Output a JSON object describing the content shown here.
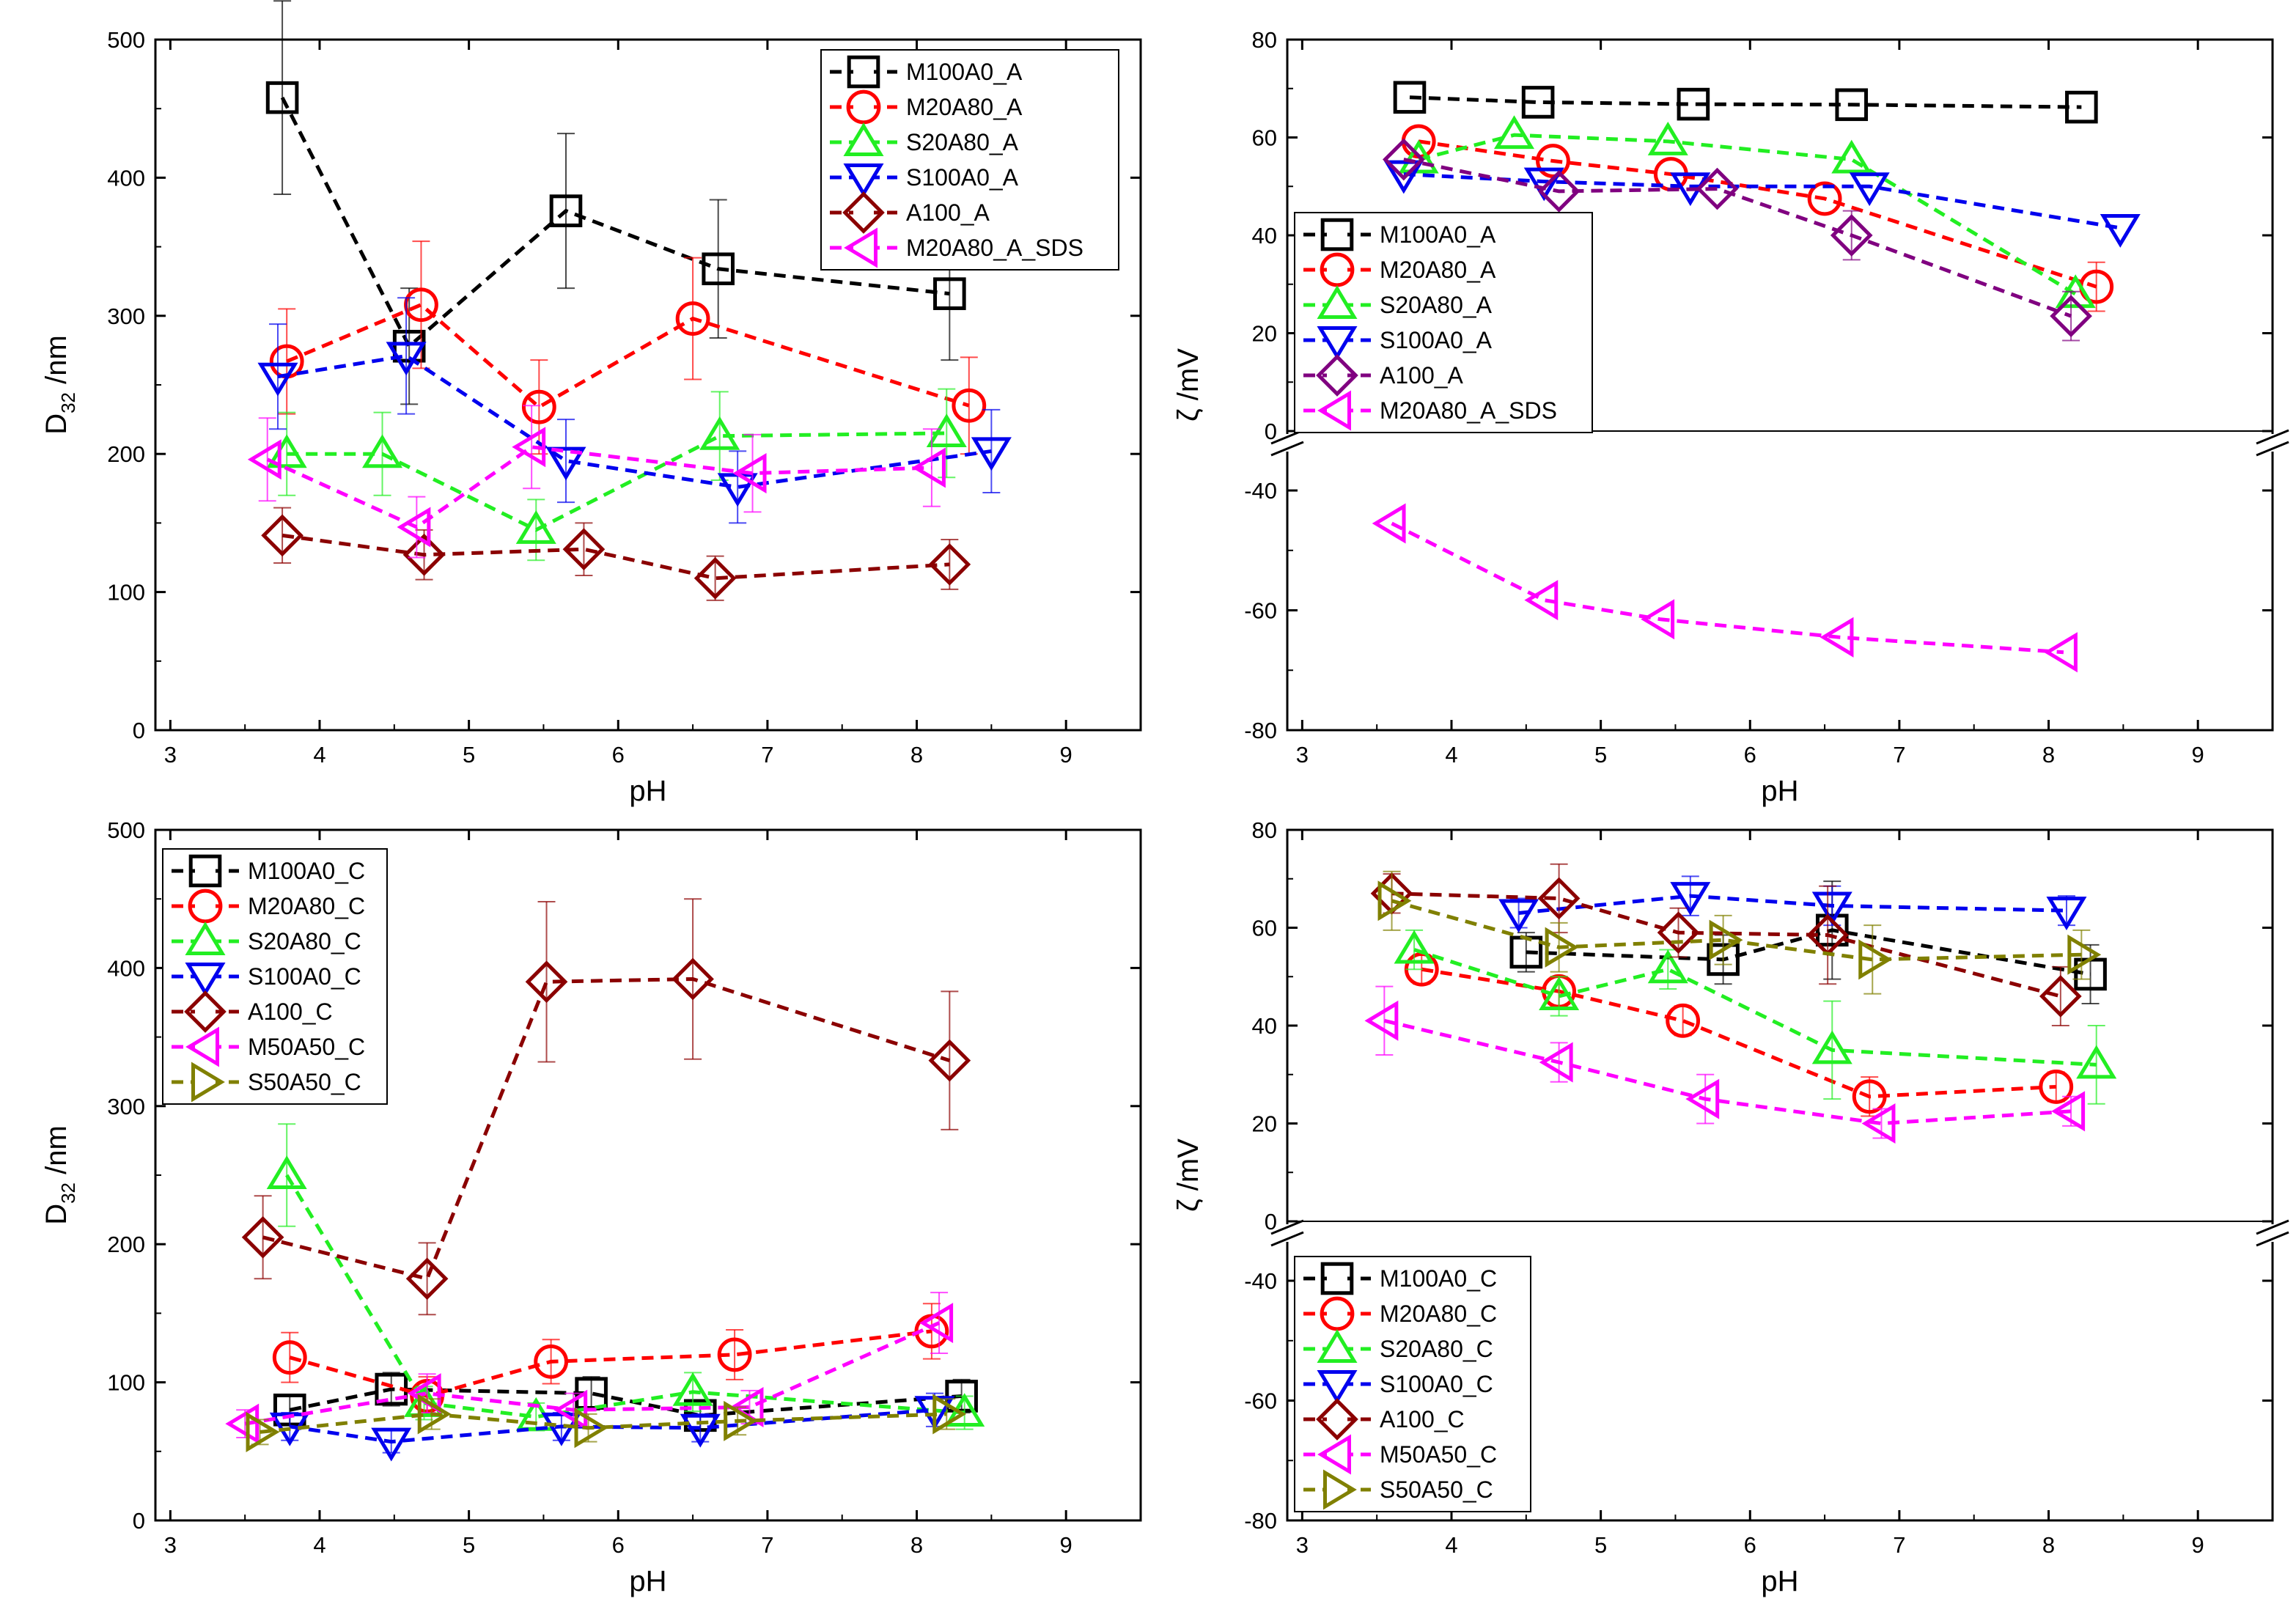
{
  "colors": {
    "black": "#000000",
    "red": "#ff0000",
    "green": "#22ee22",
    "blue": "#0000ee",
    "darkred": "#8b0000",
    "magenta": "#ff00ff",
    "purple": "#800080",
    "olive": "#808000"
  },
  "chart_data": [
    {
      "type": "line",
      "title": "",
      "xlabel": "pH",
      "ylabel": "D32 /nm",
      "ylabel_main": "D",
      "ylabel_sub": "32",
      "ylabel_unit": " /nm",
      "xlim": [
        2.9,
        9.5
      ],
      "ylim": [
        0,
        500
      ],
      "xticks": [
        3,
        4,
        5,
        6,
        7,
        8,
        9
      ],
      "yticks": [
        0,
        100,
        200,
        300,
        400,
        500
      ],
      "xtick_labels": [
        "3",
        "4",
        "5",
        "6",
        "7",
        "8",
        "9"
      ],
      "ytick_labels": [
        "0",
        "100",
        "200",
        "300",
        "400",
        "500"
      ],
      "legend_position": "top-right",
      "series": [
        {
          "name": "M100A0_A",
          "marker": "square",
          "color": "#000000",
          "x": [
            3.75,
            4.6,
            5.65,
            6.67,
            8.22
          ],
          "y": [
            458,
            278,
            376,
            334,
            316
          ],
          "err": [
            70,
            42,
            56,
            50,
            48
          ]
        },
        {
          "name": "M20A80_A",
          "marker": "circle",
          "color": "#ff0000",
          "x": [
            3.78,
            4.68,
            5.47,
            6.5,
            8.35
          ],
          "y": [
            267,
            308,
            234,
            298,
            235
          ],
          "err": [
            38,
            46,
            34,
            44,
            35
          ]
        },
        {
          "name": "S20A80_A",
          "marker": "triangle-up",
          "color": "#22ee22",
          "x": [
            3.78,
            4.42,
            5.45,
            6.68,
            8.2
          ],
          "y": [
            200,
            200,
            145,
            213,
            215
          ],
          "err": [
            30,
            30,
            22,
            32,
            32
          ]
        },
        {
          "name": "S100A0_A",
          "marker": "triangle-down",
          "color": "#0000ee",
          "x": [
            3.72,
            4.58,
            5.65,
            6.8,
            8.5
          ],
          "y": [
            256,
            271,
            195,
            176,
            202
          ],
          "err": [
            38,
            42,
            30,
            26,
            30
          ]
        },
        {
          "name": "A100_A",
          "marker": "diamond",
          "color": "#8b0000",
          "x": [
            3.75,
            4.7,
            5.77,
            6.65,
            8.22
          ],
          "y": [
            141,
            127,
            131,
            110,
            120
          ],
          "err": [
            20,
            18,
            19,
            16,
            18
          ]
        },
        {
          "name": "M20A80_A_SDS",
          "marker": "triangle-left",
          "color": "#ff00ff",
          "x": [
            3.65,
            4.65,
            5.42,
            6.9,
            8.1
          ],
          "y": [
            196,
            147,
            205,
            186,
            190
          ],
          "err": [
            30,
            22,
            30,
            28,
            28
          ]
        }
      ]
    },
    {
      "type": "line",
      "title": "",
      "xlabel": "pH",
      "ylabel": "ζ /mV",
      "xlim": [
        2.9,
        9.5
      ],
      "ylim_upper": [
        0,
        80
      ],
      "ylim_lower": [
        -80,
        -34
      ],
      "axis_break": true,
      "xticks": [
        3,
        4,
        5,
        6,
        7,
        8,
        9
      ],
      "xtick_labels": [
        "3",
        "4",
        "5",
        "6",
        "7",
        "8",
        "9"
      ],
      "yticks": [
        80,
        60,
        40,
        20,
        0,
        -40,
        -60,
        -80
      ],
      "ytick_labels": [
        "80",
        "60",
        "40",
        "20",
        "0",
        "-40",
        "-60",
        "-80"
      ],
      "legend_position": "left",
      "series": [
        {
          "name": "M100A0_A",
          "marker": "square",
          "color": "#000000",
          "x": [
            3.72,
            4.58,
            5.62,
            6.68,
            8.22
          ],
          "y": [
            68.2,
            67.2,
            66.8,
            66.7,
            66.2
          ],
          "err": [
            0,
            0,
            0,
            0,
            0
          ]
        },
        {
          "name": "M20A80_A",
          "marker": "circle",
          "color": "#ff0000",
          "x": [
            3.78,
            4.68,
            5.47,
            6.5,
            8.32
          ],
          "y": [
            59.2,
            55.2,
            52.5,
            47.5,
            29.5
          ],
          "err": [
            0,
            0,
            0,
            0,
            5
          ]
        },
        {
          "name": "S20A80_A",
          "marker": "triangle-up",
          "color": "#22ee22",
          "x": [
            3.78,
            4.42,
            5.45,
            6.68,
            8.18
          ],
          "y": [
            55.5,
            60.5,
            59.2,
            55.5,
            28.0
          ],
          "err": [
            0,
            0,
            0,
            0,
            0
          ]
        },
        {
          "name": "S100A0_A",
          "marker": "triangle-down",
          "color": "#0000ee",
          "x": [
            3.68,
            4.62,
            5.6,
            6.8,
            8.48
          ],
          "y": [
            52.5,
            51.0,
            50.0,
            50.0,
            41.5
          ],
          "err": [
            0,
            0,
            0,
            0,
            0
          ]
        },
        {
          "name": "A100_A",
          "marker": "diamond",
          "color": "#800080",
          "x": [
            3.68,
            4.72,
            5.78,
            6.68,
            8.15
          ],
          "y": [
            55.5,
            49.0,
            49.5,
            40.0,
            23.5
          ],
          "err": [
            0,
            0,
            0,
            5,
            5
          ]
        },
        {
          "name": "M20A80_A_SDS",
          "marker": "triangle-left",
          "color": "#ff00ff",
          "x": [
            3.6,
            4.62,
            5.4,
            6.6,
            8.1
          ],
          "y": [
            -45.5,
            -58.3,
            -61.5,
            -64.5,
            -67.0
          ],
          "err": [
            0,
            0,
            0,
            0,
            0
          ]
        }
      ]
    },
    {
      "type": "line",
      "title": "",
      "xlabel": "pH",
      "ylabel": "D32 /nm",
      "ylabel_main": "D",
      "ylabel_sub": "32",
      "ylabel_unit": " /nm",
      "xlim": [
        2.9,
        9.5
      ],
      "ylim": [
        0,
        500
      ],
      "xticks": [
        3,
        4,
        5,
        6,
        7,
        8,
        9
      ],
      "yticks": [
        0,
        100,
        200,
        300,
        400,
        500
      ],
      "xtick_labels": [
        "3",
        "4",
        "5",
        "6",
        "7",
        "8",
        "9"
      ],
      "ytick_labels": [
        "0",
        "100",
        "200",
        "300",
        "400",
        "500"
      ],
      "legend_position": "top-left",
      "series": [
        {
          "name": "M100A0_C",
          "marker": "square",
          "color": "#000000",
          "x": [
            3.8,
            4.48,
            5.82,
            6.55,
            8.3
          ],
          "y": [
            80,
            95,
            92,
            76,
            90
          ],
          "err": [
            10,
            12,
            12,
            10,
            12
          ]
        },
        {
          "name": "M20A80_C",
          "marker": "circle",
          "color": "#ff0000",
          "x": [
            3.8,
            4.72,
            5.55,
            6.78,
            8.1
          ],
          "y": [
            118,
            90,
            115,
            120,
            137
          ],
          "err": [
            18,
            14,
            16,
            18,
            20
          ]
        },
        {
          "name": "S20A80_C",
          "marker": "triangle-up",
          "color": "#22ee22",
          "x": [
            3.78,
            4.7,
            5.45,
            6.5,
            8.32
          ],
          "y": [
            250,
            85,
            75,
            93,
            78
          ],
          "err": [
            37,
            12,
            10,
            14,
            12
          ]
        },
        {
          "name": "S100A0_C",
          "marker": "triangle-down",
          "color": "#0000ee",
          "x": [
            3.8,
            4.48,
            5.62,
            6.55,
            8.12
          ],
          "y": [
            68,
            57,
            68,
            67,
            80
          ],
          "err": [
            10,
            8,
            10,
            10,
            12
          ]
        },
        {
          "name": "A100_C",
          "marker": "diamond",
          "color": "#8b0000",
          "x": [
            3.62,
            4.72,
            5.52,
            6.5,
            8.22
          ],
          "y": [
            205,
            175,
            390,
            392,
            333
          ],
          "err": [
            30,
            26,
            58,
            58,
            50
          ]
        },
        {
          "name": "M50A50_C",
          "marker": "triangle-left",
          "color": "#ff00ff",
          "x": [
            3.5,
            4.72,
            5.7,
            6.88,
            8.15
          ],
          "y": [
            70,
            92,
            80,
            82,
            143
          ],
          "err": [
            10,
            14,
            12,
            12,
            22
          ]
        },
        {
          "name": "S50A50_C",
          "marker": "triangle-right",
          "color": "#808000",
          "x": [
            3.6,
            4.75,
            5.8,
            6.8,
            8.2
          ],
          "y": [
            64,
            77,
            67,
            72,
            77
          ],
          "err": [
            9,
            11,
            10,
            10,
            11
          ]
        }
      ]
    },
    {
      "type": "line",
      "title": "",
      "xlabel": "pH",
      "ylabel": "ζ /mV",
      "xlim": [
        2.9,
        9.5
      ],
      "ylim_upper": [
        0,
        80
      ],
      "ylim_lower": [
        -80,
        -34
      ],
      "axis_break": true,
      "xticks": [
        3,
        4,
        5,
        6,
        7,
        8,
        9
      ],
      "xtick_labels": [
        "3",
        "4",
        "5",
        "6",
        "7",
        "8",
        "9"
      ],
      "yticks": [
        80,
        60,
        40,
        20,
        0,
        -40,
        -60,
        -80
      ],
      "ytick_labels": [
        "80",
        "60",
        "40",
        "20",
        "0",
        "-40",
        "-60",
        "-80"
      ],
      "legend_position": "bottom-left",
      "series": [
        {
          "name": "M100A0_C",
          "marker": "square",
          "color": "#000000",
          "x": [
            4.5,
            5.82,
            6.55,
            8.28
          ],
          "y": [
            55,
            53.5,
            59.5,
            50.5
          ],
          "err": [
            4,
            5,
            10,
            6
          ]
        },
        {
          "name": "M20A80_C",
          "marker": "circle",
          "color": "#ff0000",
          "x": [
            3.8,
            4.72,
            5.55,
            6.8,
            8.05
          ],
          "y": [
            51.5,
            47,
            41,
            25.5,
            27.5
          ],
          "err": [
            3,
            3,
            3,
            4,
            3
          ]
        },
        {
          "name": "S20A80_C",
          "marker": "triangle-up",
          "color": "#22ee22",
          "x": [
            3.75,
            4.72,
            5.45,
            6.55,
            8.32
          ],
          "y": [
            55.5,
            46,
            51.5,
            35,
            32
          ],
          "err": [
            4,
            4,
            4,
            10,
            8
          ]
        },
        {
          "name": "S100A0_C",
          "marker": "triangle-down",
          "color": "#0000ee",
          "x": [
            4.45,
            5.6,
            6.55,
            8.12
          ],
          "y": [
            63,
            66.5,
            64.5,
            63.5
          ],
          "err": [
            3,
            4,
            4,
            3
          ]
        },
        {
          "name": "A100_C",
          "marker": "diamond",
          "color": "#8b0000",
          "x": [
            3.6,
            4.72,
            5.52,
            6.52,
            8.08
          ],
          "y": [
            67,
            66,
            59,
            58.5,
            46
          ],
          "err": [
            4,
            7,
            5,
            10,
            6
          ]
        },
        {
          "name": "M50A50_C",
          "marker": "triangle-left",
          "color": "#ff00ff",
          "x": [
            3.55,
            4.72,
            5.7,
            6.88,
            8.15
          ],
          "y": [
            41,
            32.5,
            25,
            20,
            22.5
          ],
          "err": [
            7,
            4,
            5,
            3,
            3
          ]
        },
        {
          "name": "S50A50_C",
          "marker": "triangle-right",
          "color": "#808000",
          "x": [
            3.6,
            4.72,
            5.82,
            6.82,
            8.22
          ],
          "y": [
            65.5,
            56,
            57.5,
            53.5,
            54.5
          ],
          "err": [
            6,
            5,
            5,
            7,
            5
          ]
        }
      ]
    }
  ]
}
